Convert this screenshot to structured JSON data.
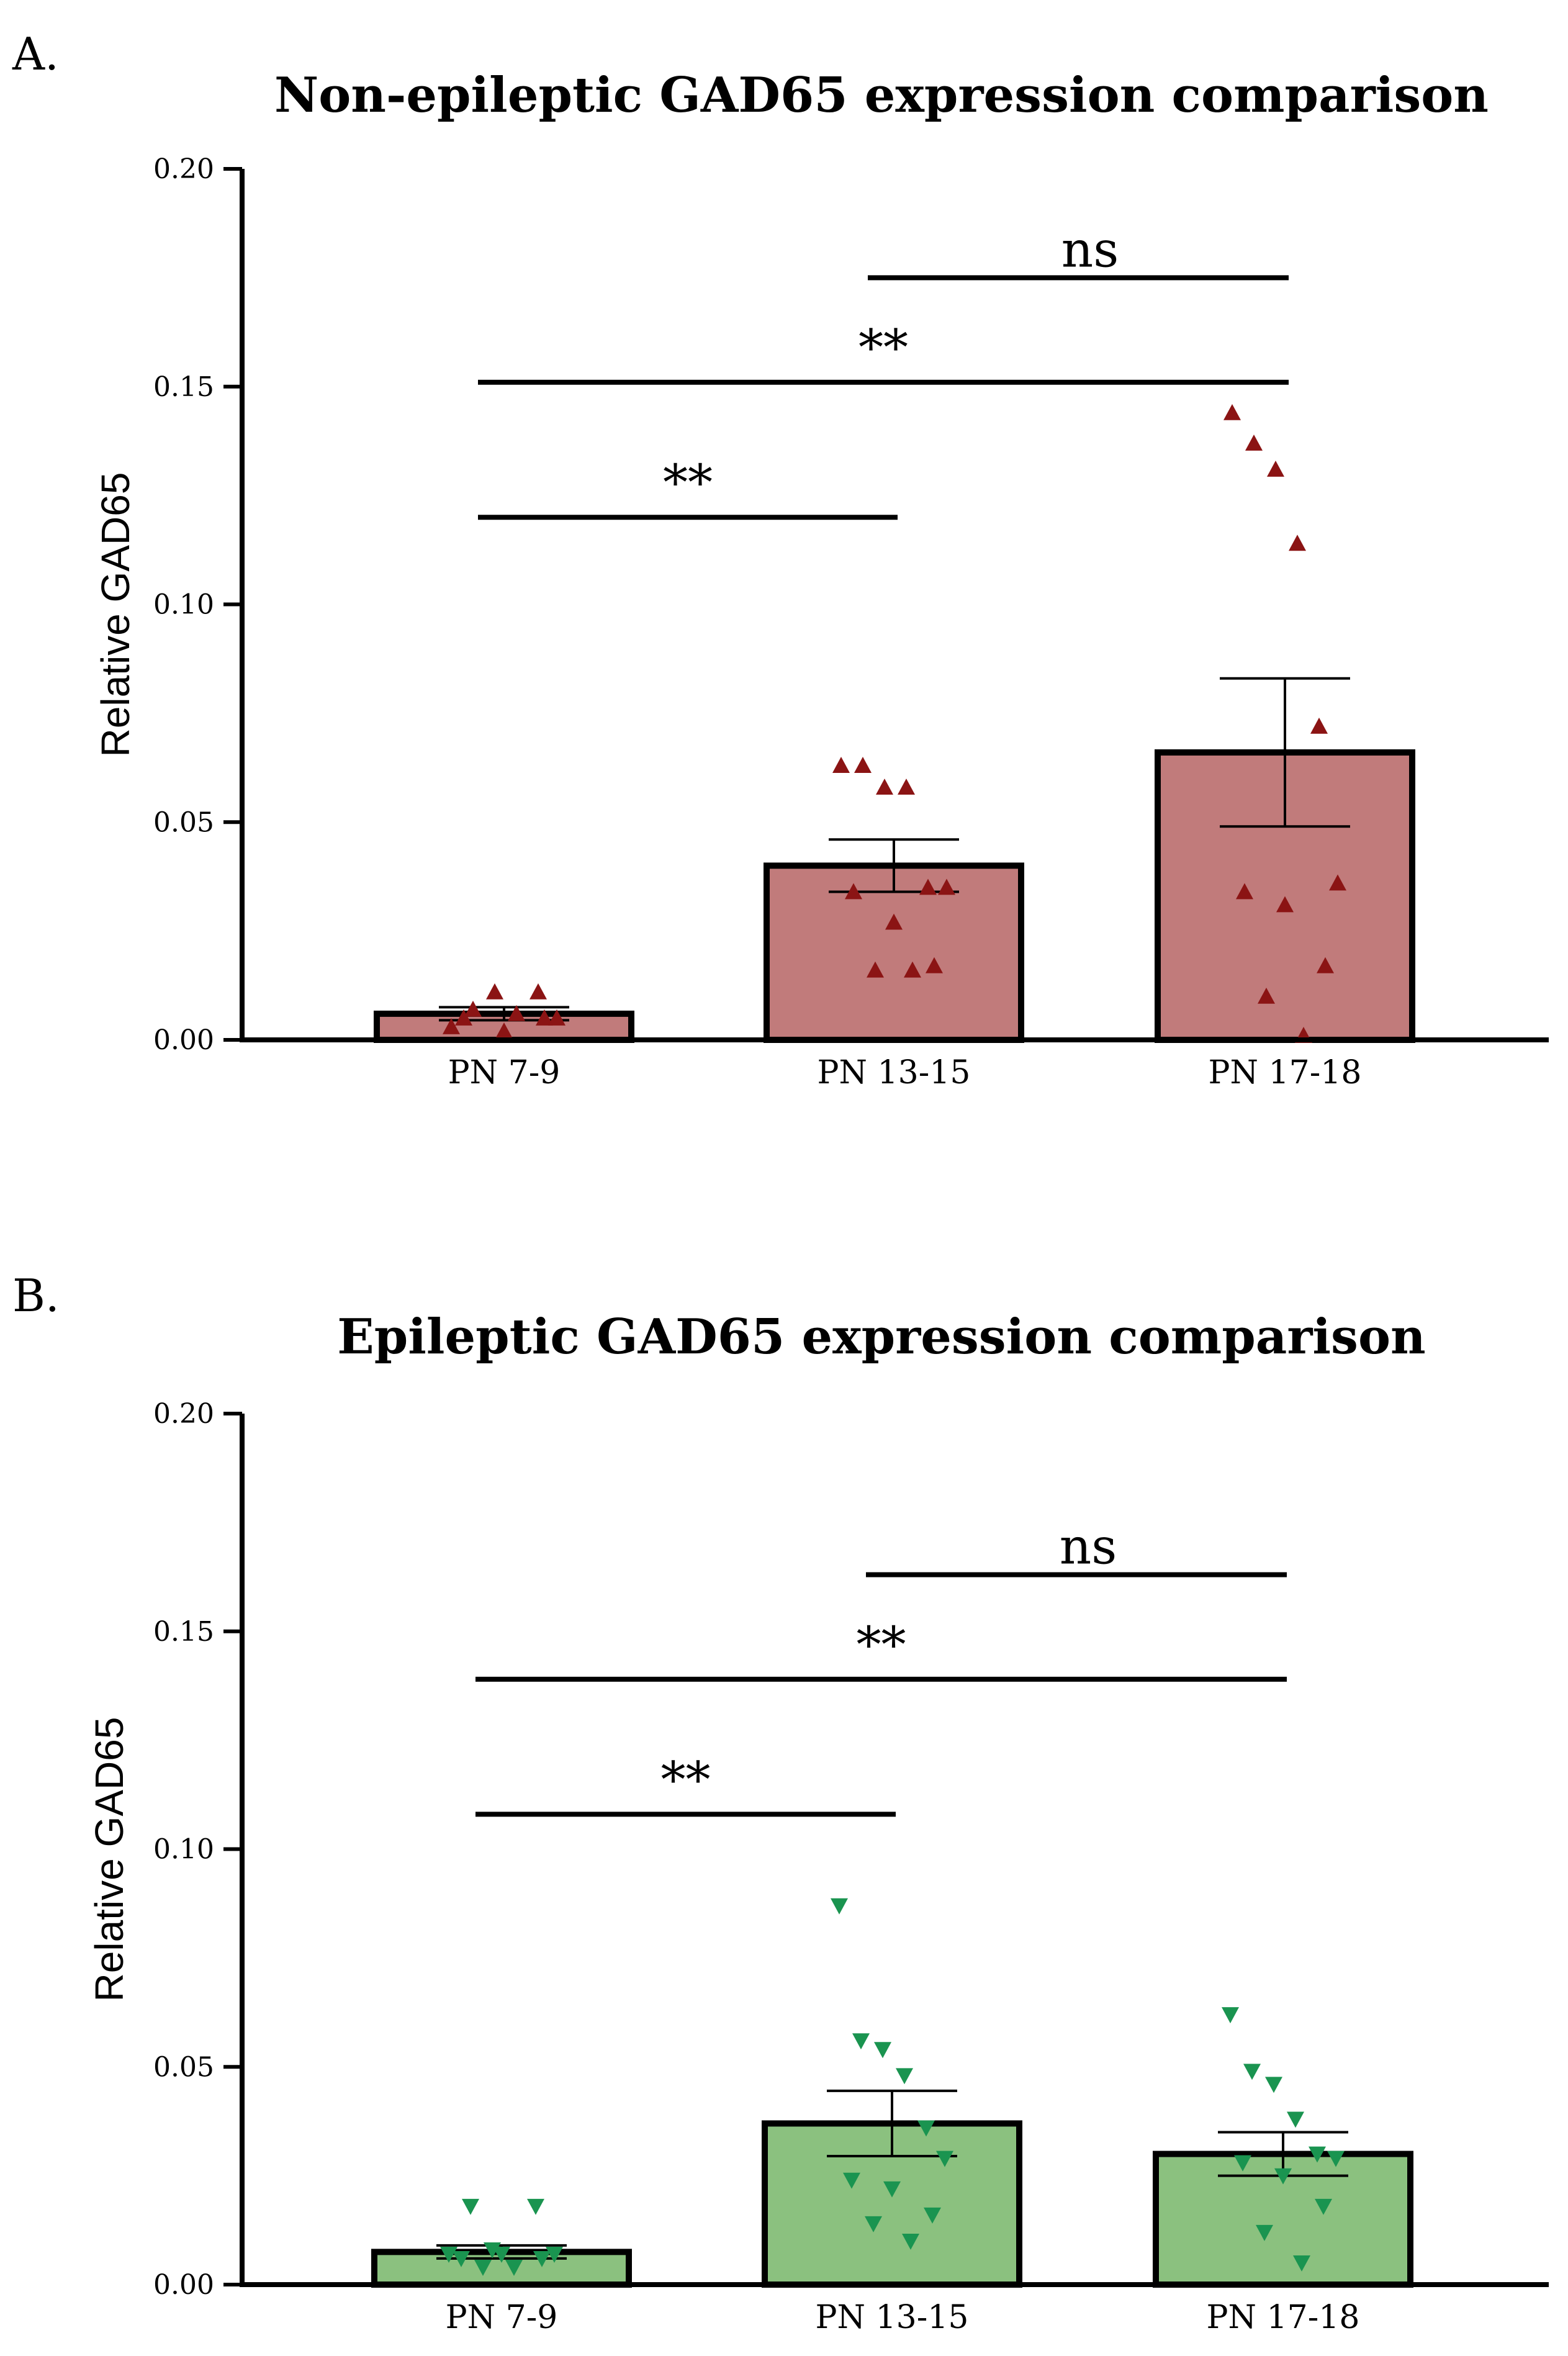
{
  "chart_data": [
    {
      "type": "bar",
      "panel_label": "A.",
      "title": "Non-epileptic GAD65 expression comparison",
      "xlabel": "",
      "ylabel": "Relative GAD65",
      "ylim": [
        0,
        0.2
      ],
      "yticks": [
        "0.00",
        "0.05",
        "0.10",
        "0.15",
        "0.20"
      ],
      "categories": [
        "PN 7-9",
        "PN 13-15",
        "PN 17-18"
      ],
      "values": [
        0.006,
        0.04,
        0.066
      ],
      "sem": [
        0.0015,
        0.006,
        0.017
      ],
      "bar_color": "#c17b7b",
      "point_color": "#8b1414",
      "marker": "triangle-up",
      "points": [
        [
          0.003,
          0.007,
          0.011,
          0.006,
          0.011,
          0.005,
          0.005,
          0.002,
          0.005
        ],
        [
          0.063,
          0.063,
          0.058,
          0.058,
          0.035,
          0.035,
          0.034,
          0.027,
          0.017,
          0.016,
          0.016
        ],
        [
          0.144,
          0.137,
          0.131,
          0.114,
          0.072,
          0.036,
          0.034,
          0.031,
          0.017,
          0.01,
          0.001
        ]
      ],
      "comparisons": [
        {
          "from": "PN 7-9",
          "to": "PN 13-15",
          "y": 0.12,
          "label": "**"
        },
        {
          "from": "PN 7-9",
          "to": "PN 17-18",
          "y": 0.151,
          "label": "**"
        },
        {
          "from": "PN 13-15",
          "to": "PN 17-18",
          "y": 0.175,
          "label": "ns"
        }
      ]
    },
    {
      "type": "bar",
      "panel_label": "B.",
      "title": "Epileptic GAD65 expression comparison",
      "xlabel": "",
      "ylabel": "Relative GAD65",
      "ylim": [
        0,
        0.2
      ],
      "yticks": [
        "0.00",
        "0.05",
        "0.10",
        "0.15",
        "0.20"
      ],
      "categories": [
        "PN 7-9",
        "PN 13-15",
        "PN 17-18"
      ],
      "values": [
        0.0075,
        0.037,
        0.03
      ],
      "sem": [
        0.0015,
        0.0075,
        0.005
      ],
      "bar_color": "#8bc17f",
      "point_color": "#1a9450",
      "marker": "triangle-down",
      "points": [
        [
          0.007,
          0.018,
          0.008,
          0.004,
          0.018,
          0.007,
          0.006,
          0.007,
          0.006,
          0.004
        ],
        [
          0.087,
          0.056,
          0.054,
          0.048,
          0.036,
          0.029,
          0.024,
          0.022,
          0.016,
          0.014,
          0.01
        ],
        [
          0.062,
          0.049,
          0.046,
          0.038,
          0.03,
          0.029,
          0.028,
          0.025,
          0.018,
          0.012,
          0.005
        ]
      ],
      "comparisons": [
        {
          "from": "PN 7-9",
          "to": "PN 13-15",
          "y": 0.108,
          "label": "**"
        },
        {
          "from": "PN 7-9",
          "to": "PN 17-18",
          "y": 0.139,
          "label": "**"
        },
        {
          "from": "PN 13-15",
          "to": "PN 17-18",
          "y": 0.163,
          "label": "ns"
        }
      ]
    }
  ]
}
